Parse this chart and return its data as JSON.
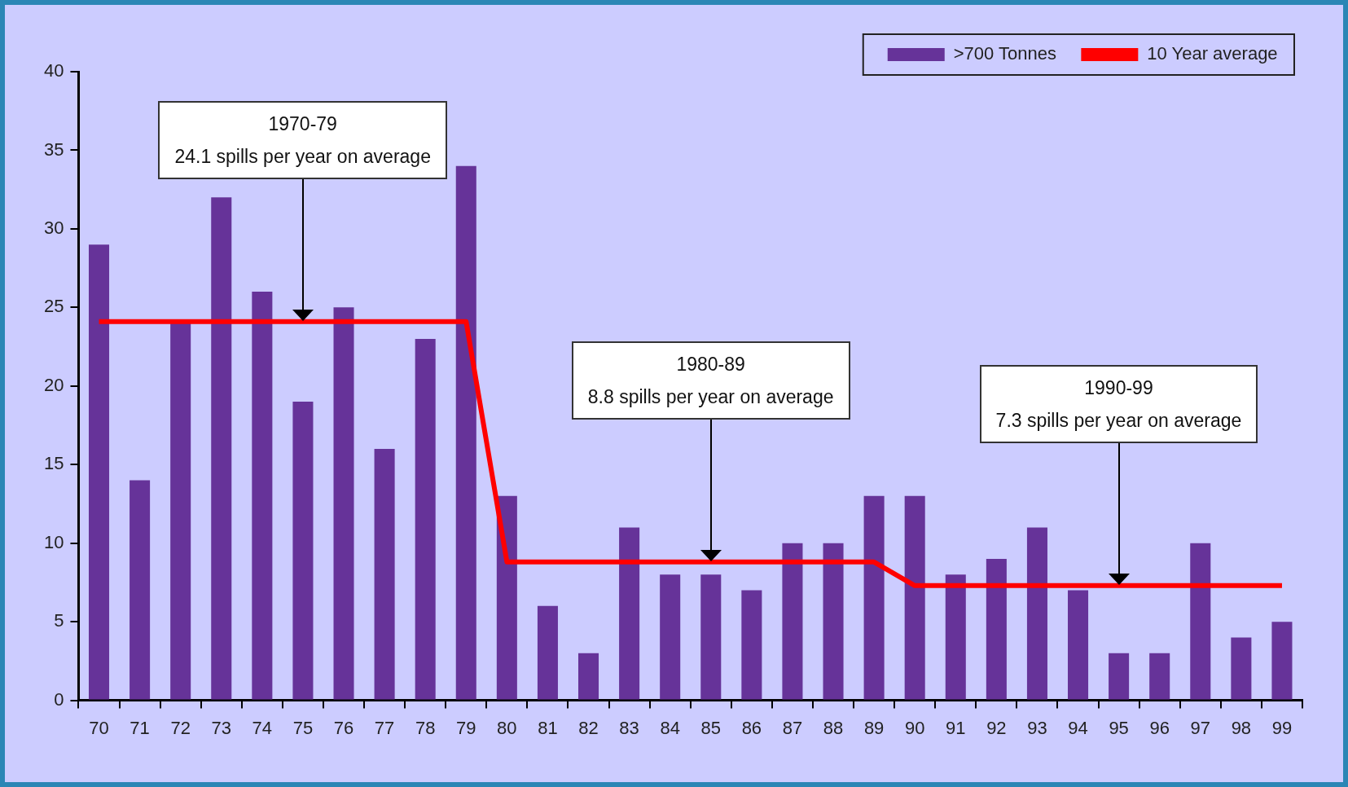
{
  "chart_data": {
    "type": "bar",
    "categories": [
      "70",
      "71",
      "72",
      "73",
      "74",
      "75",
      "76",
      "77",
      "78",
      "79",
      "80",
      "81",
      "82",
      "83",
      "84",
      "85",
      "86",
      "87",
      "88",
      "89",
      "90",
      "91",
      "92",
      "93",
      "94",
      "95",
      "96",
      "97",
      "98",
      "99"
    ],
    "series": [
      {
        "name": ">700 Tonnes",
        "color": "#663399",
        "values": [
          29,
          14,
          24,
          32,
          26,
          19,
          25,
          16,
          23,
          34,
          13,
          6,
          3,
          11,
          8,
          8,
          7,
          10,
          10,
          13,
          13,
          8,
          9,
          11,
          7,
          3,
          3,
          10,
          4,
          5
        ]
      },
      {
        "name": "10 Year average",
        "type": "line",
        "color": "#ff0000",
        "values": [
          24.1,
          24.1,
          24.1,
          24.1,
          24.1,
          24.1,
          24.1,
          24.1,
          24.1,
          24.1,
          8.8,
          8.8,
          8.8,
          8.8,
          8.8,
          8.8,
          8.8,
          8.8,
          8.8,
          8.8,
          7.3,
          7.3,
          7.3,
          7.3,
          7.3,
          7.3,
          7.3,
          7.3,
          7.3,
          7.3
        ]
      }
    ],
    "ylim": [
      0,
      40
    ],
    "yticks": [
      0,
      5,
      10,
      15,
      20,
      25,
      30,
      35,
      40
    ],
    "grid": false,
    "legend": "top right",
    "marker": "none",
    "annotations": [
      "1970-79\n24.1 spills per year on average",
      "1980-89\n8.8 spills per year on average",
      "1990-99\n7.3 spills per year on average"
    ]
  }
}
